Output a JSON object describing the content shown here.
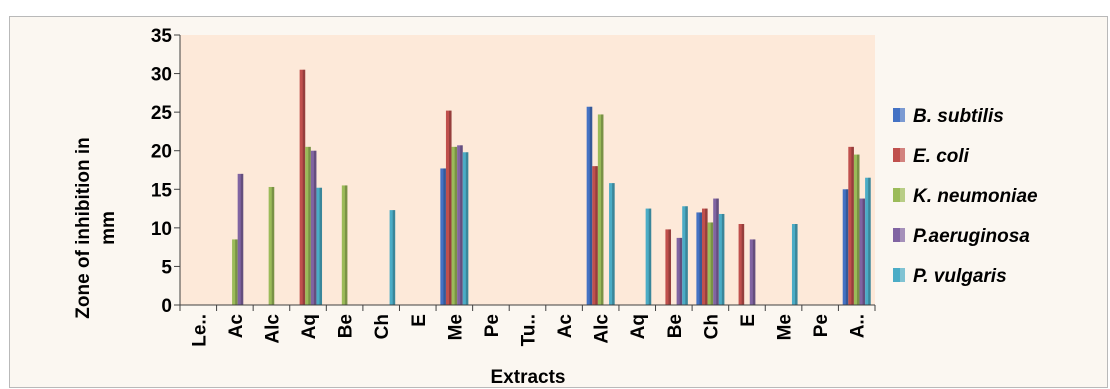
{
  "chart_data": {
    "type": "bar",
    "title": "",
    "xlabel": "Extracts",
    "ylabel": "Zone of inhibition in mm",
    "ylim": [
      0,
      35
    ],
    "yticks": [
      0,
      5,
      10,
      15,
      20,
      25,
      30,
      35
    ],
    "grid": false,
    "legend_position": "right",
    "plot_background": "#fde9d9",
    "categories": [
      "Le..",
      "Ac",
      "Alc",
      "Aq",
      "Be",
      "Ch",
      "E",
      "Me",
      "Pe",
      "Tu..",
      "Ac",
      "Alc",
      "Aq",
      "Be",
      "Ch",
      "E",
      "Me",
      "Pe",
      "A.."
    ],
    "series": [
      {
        "name": "B. subtilis",
        "color": "#4472c4",
        "values": [
          0,
          0,
          0,
          0,
          0,
          0,
          0,
          17.7,
          0,
          0,
          0,
          25.7,
          0,
          0,
          12,
          0,
          0,
          0,
          15
        ]
      },
      {
        "name": "E. coli",
        "color": "#c0504d",
        "values": [
          0,
          0,
          0,
          30.5,
          0,
          0,
          0,
          25.2,
          0,
          0,
          0,
          18,
          0,
          9.8,
          12.5,
          10.5,
          0,
          0,
          20.5
        ]
      },
      {
        "name": "K. neumoniae",
        "color": "#9bbb59",
        "values": [
          0,
          8.5,
          15.3,
          20.5,
          15.5,
          0,
          0,
          20.5,
          0,
          0,
          0,
          24.7,
          0,
          0,
          10.7,
          0,
          0,
          0,
          19.5
        ]
      },
      {
        "name": "P.aeruginosa",
        "color": "#8064a2",
        "values": [
          0,
          17,
          0,
          20,
          0,
          0,
          0,
          20.7,
          0,
          0,
          0,
          0,
          0,
          8.7,
          13.8,
          8.5,
          0,
          0,
          13.8
        ]
      },
      {
        "name": "P. vulgaris",
        "color": "#4bacc6",
        "values": [
          0,
          0,
          0,
          15.2,
          0,
          12.3,
          0,
          19.8,
          0,
          0,
          0,
          15.8,
          12.5,
          12.8,
          11.8,
          0,
          10.5,
          0,
          16.5
        ]
      }
    ]
  }
}
